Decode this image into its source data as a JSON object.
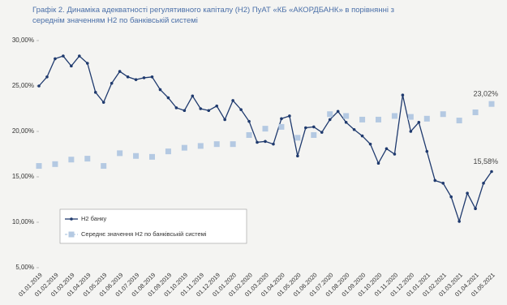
{
  "chart_data": {
    "type": "line",
    "title": "Графік 2. Динаміка адекватності регулятивного капіталу (Н2) ПуАТ «КБ «АКОРДБАНК» в порівнянні з середнім значенням Н2 по банківській системі",
    "categories": [
      "01.01.2019",
      null,
      "01.02.2019",
      null,
      "01.03.2019",
      null,
      "01.04.2019",
      null,
      "01.05.2019",
      null,
      "01.06.2019",
      null,
      "01.07.2019",
      null,
      "01.08.2019",
      null,
      "01.09.2019",
      null,
      "01.10.2019",
      null,
      "01.11.2019",
      null,
      "01.12.2019",
      null,
      "01.01.2020",
      null,
      "01.02.2020",
      null,
      "01.03.2020",
      null,
      "01.04.2020",
      null,
      "01.05.2020",
      null,
      "01.06.2020",
      null,
      "01.07.2020",
      null,
      "01.08.2020",
      null,
      "01.09.2020",
      null,
      "01.10.2020",
      null,
      "01.11.2020",
      null,
      "01.12.2020",
      null,
      "01.01.2021",
      null,
      "01.02.2021",
      null,
      "01.03.2021",
      null,
      "01.04.2021",
      null,
      "01.05.2021"
    ],
    "series": [
      {
        "name": "Н2 банку",
        "color": "#1f3a6e",
        "style": "line",
        "values": [
          25.0,
          26.0,
          28.0,
          28.3,
          27.2,
          28.3,
          27.5,
          24.3,
          23.2,
          25.3,
          26.6,
          26.0,
          25.7,
          25.9,
          26.0,
          24.6,
          23.7,
          22.6,
          22.3,
          23.9,
          22.5,
          22.3,
          22.8,
          21.3,
          23.4,
          22.4,
          21.1,
          18.8,
          18.9,
          18.6,
          21.4,
          21.7,
          17.3,
          20.4,
          20.5,
          19.9,
          21.3,
          22.2,
          21.0,
          20.2,
          19.5,
          18.6,
          16.5,
          18.1,
          17.5,
          24.0,
          20.0,
          21.0,
          17.8,
          14.6,
          14.3,
          12.8,
          10.1,
          13.2,
          11.5,
          14.3,
          15.58
        ],
        "value_labels": [
          null,
          null,
          null,
          null,
          null,
          null,
          null,
          null,
          null,
          null,
          null,
          null,
          null,
          null,
          null,
          null,
          null,
          null,
          null,
          null,
          null,
          null,
          null,
          null,
          null,
          null,
          null,
          null,
          null,
          null,
          null,
          null,
          null,
          null,
          null,
          null,
          null,
          null,
          null,
          null,
          null,
          null,
          null,
          null,
          null,
          null,
          null,
          null,
          null,
          null,
          null,
          null,
          null,
          null,
          null,
          null,
          "15,58%"
        ]
      },
      {
        "name": "Середнє значення Н2 по банківській системі",
        "color": "#b4c9e2",
        "style": "markers",
        "values": [
          16.2,
          null,
          16.4,
          null,
          16.9,
          null,
          17.0,
          null,
          16.2,
          null,
          17.6,
          null,
          17.3,
          null,
          17.2,
          null,
          17.8,
          null,
          18.2,
          null,
          18.4,
          null,
          18.6,
          null,
          18.6,
          null,
          19.6,
          null,
          20.3,
          null,
          20.5,
          null,
          19.3,
          null,
          19.6,
          null,
          21.9,
          null,
          21.7,
          null,
          21.3,
          null,
          21.3,
          null,
          21.7,
          null,
          21.6,
          null,
          21.4,
          null,
          21.9,
          null,
          21.2,
          null,
          22.1,
          null,
          23.02
        ],
        "value_labels": [
          null,
          null,
          null,
          null,
          null,
          null,
          null,
          null,
          null,
          null,
          null,
          null,
          null,
          null,
          null,
          null,
          null,
          null,
          null,
          null,
          null,
          null,
          null,
          null,
          null,
          null,
          null,
          null,
          null,
          null,
          null,
          null,
          null,
          null,
          null,
          null,
          null,
          null,
          null,
          null,
          null,
          null,
          null,
          null,
          null,
          null,
          null,
          null,
          null,
          null,
          null,
          null,
          null,
          null,
          null,
          null,
          "23,02%"
        ]
      }
    ],
    "ylim": [
      5,
      30
    ],
    "yticks": [
      {
        "value": 5,
        "label": "5,00%"
      },
      {
        "value": 10,
        "label": "10,00%"
      },
      {
        "value": 15,
        "label": "15,00%"
      },
      {
        "value": 20,
        "label": "20,00%"
      },
      {
        "value": 25,
        "label": "25,00%"
      },
      {
        "value": 30,
        "label": "30,00%"
      }
    ],
    "grid": false,
    "legend": "lower left"
  }
}
